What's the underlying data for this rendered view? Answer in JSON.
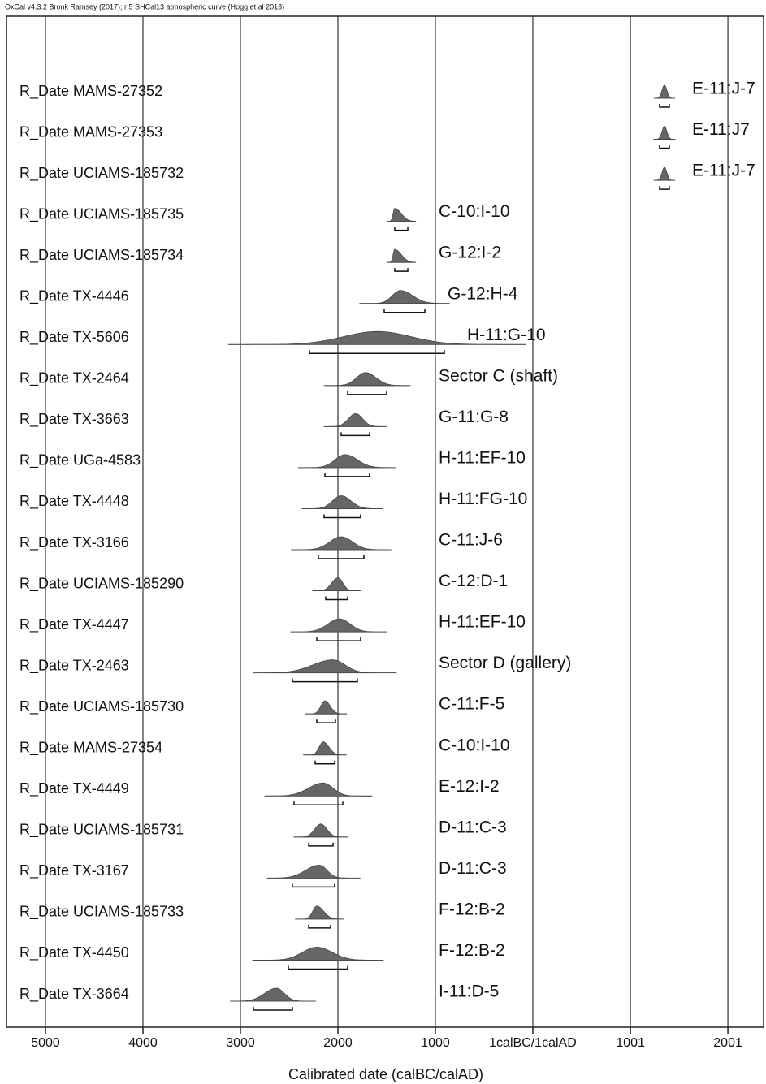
{
  "chart_data": {
    "type": "multiplot",
    "header": "OxCal v4.3.2 Bronk Ramsey (2017); r:5 SHCal13 atmospheric curve (Hogg et al 2013)",
    "x_label": "Calibrated date (calBC/calAD)",
    "xlim": [
      -5400,
      2367
    ],
    "xticks": [
      {
        "value": -5000,
        "label": "5000"
      },
      {
        "value": -4000,
        "label": "4000"
      },
      {
        "value": -3000,
        "label": "3000"
      },
      {
        "value": -2000,
        "label": "2000"
      },
      {
        "value": -1000,
        "label": "1000"
      },
      {
        "value": 0,
        "label": "1calBC/1calAD"
      },
      1001,
      2001
    ],
    "grid": true,
    "color": "#666666",
    "rows": [
      {
        "label": "R_Date MAMS-27352",
        "annotation": "E-11:J-7",
        "peak": 1350,
        "hpd": [
          1300,
          1400
        ]
      },
      {
        "label": "R_Date MAMS-27353",
        "annotation": "E-11:J7",
        "peak": 1350,
        "hpd": [
          1300,
          1400
        ]
      },
      {
        "label": "R_Date UCIAMS-185732",
        "annotation": "E-11:J-7",
        "peak": 1350,
        "hpd": [
          1300,
          1400
        ]
      },
      {
        "label": "R_Date UCIAMS-185735",
        "annotation": "C-10:I-10",
        "peak": -1417,
        "hpd": [
          -1417,
          -1283
        ]
      },
      {
        "label": "R_Date UCIAMS-185734",
        "annotation": "G-12:I-2",
        "peak": -1417,
        "hpd": [
          -1417,
          -1283
        ]
      },
      {
        "label": "R_Date TX-4446",
        "annotation": "G-12:H-4",
        "peak": -1358,
        "hpd": [
          -1525,
          -1108
        ]
      },
      {
        "label": "R_Date TX-5606",
        "annotation": "H-11:G-10",
        "peak": -1592,
        "hpd": [
          -2292,
          -908
        ]
      },
      {
        "label": "R_Date TX-2464",
        "annotation": "Sector C (shaft)",
        "peak": -1717,
        "hpd": [
          -1900,
          -1500
        ]
      },
      {
        "label": "R_Date TX-3663",
        "annotation": "G-11:G-8",
        "peak": -1817,
        "hpd": [
          -1967,
          -1675
        ]
      },
      {
        "label": "R_Date UGa-4583",
        "annotation": "H-11:EF-10",
        "peak": -1925,
        "hpd": [
          -2133,
          -1675
        ]
      },
      {
        "label": "R_Date TX-4448",
        "annotation": "H-11:FG-10",
        "peak": -1967,
        "hpd": [
          -2142,
          -1767
        ]
      },
      {
        "label": "R_Date TX-3166",
        "annotation": "C-11:J-6",
        "peak": -1967,
        "hpd": [
          -2200,
          -1733
        ]
      },
      {
        "label": "R_Date UCIAMS-185290",
        "annotation": "C-12:D-1",
        "peak": -2000,
        "hpd": [
          -2125,
          -1900
        ]
      },
      {
        "label": "R_Date TX-4447",
        "annotation": "H-11:EF-10",
        "peak": -1983,
        "hpd": [
          -2217,
          -1767
        ]
      },
      {
        "label": "R_Date TX-2463",
        "annotation": "Sector D (gallery)",
        "peak": -2050,
        "hpd": [
          -2467,
          -1800
        ]
      },
      {
        "label": "R_Date UCIAMS-185730",
        "annotation": "C-11:F-5",
        "peak": -2133,
        "hpd": [
          -2217,
          -2025
        ]
      },
      {
        "label": "R_Date MAMS-27354",
        "annotation": "C-10:I-10",
        "peak": -2150,
        "hpd": [
          -2233,
          -2033
        ]
      },
      {
        "label": "R_Date TX-4449",
        "annotation": "E-12:I-2",
        "peak": -2150,
        "hpd": [
          -2450,
          -1950
        ]
      },
      {
        "label": "R_Date UCIAMS-185731",
        "annotation": "D-11:C-3",
        "peak": -2175,
        "hpd": [
          -2300,
          -2050
        ]
      },
      {
        "label": "R_Date TX-3167",
        "annotation": "D-11:C-3",
        "peak": -2192,
        "hpd": [
          -2467,
          -2033
        ]
      },
      {
        "label": "R_Date UCIAMS-185733",
        "annotation": "F-12:B-2",
        "peak": -2217,
        "hpd": [
          -2300,
          -2075
        ]
      },
      {
        "label": "R_Date TX-4450",
        "annotation": "F-12:B-2",
        "peak": -2217,
        "hpd": [
          -2508,
          -1900
        ]
      },
      {
        "label": "R_Date TX-3664",
        "annotation": "I-11:D-5",
        "peak": -2633,
        "hpd": [
          -2867,
          -2467
        ]
      }
    ]
  }
}
